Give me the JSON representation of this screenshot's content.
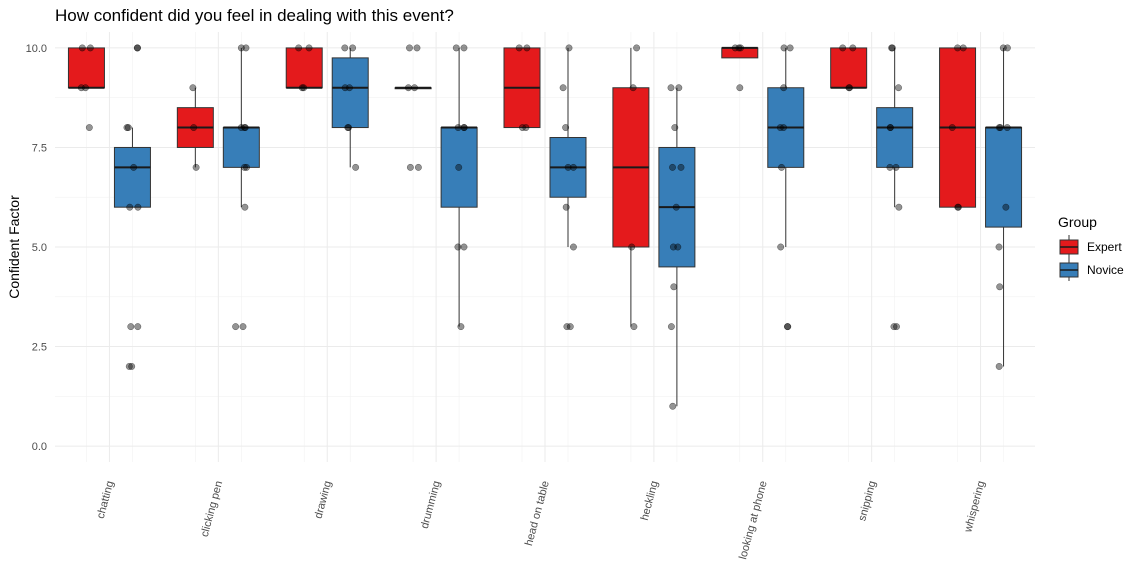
{
  "chart_data": {
    "type": "box",
    "title": "How confident did you feel in dealing with this event?",
    "xlabel": "",
    "ylabel": "Confident Factor",
    "ylim": [
      -0.4,
      10.4
    ],
    "yticks": [
      "0.0",
      "2.5",
      "5.0",
      "7.5",
      "10.0"
    ],
    "ytick_values": [
      0,
      2.5,
      5,
      7.5,
      10
    ],
    "grid": true,
    "legend": {
      "title": "Group",
      "position": "right"
    },
    "categories": [
      "chatting",
      "clicking pen",
      "drawing",
      "drumming",
      "head on table",
      "heckling",
      "looking at phone",
      "snipping",
      "whispering"
    ],
    "series": [
      {
        "name": "Expert",
        "color": "#E41A1C",
        "boxes": [
          {
            "lower": 9,
            "q1": 9,
            "median": 9,
            "q3": 10,
            "upper": 10,
            "points": [
              8,
              9,
              9,
              10,
              10
            ]
          },
          {
            "lower": 7,
            "q1": 7.5,
            "median": 8,
            "q3": 8.5,
            "upper": 9,
            "points": [
              7,
              8,
              9
            ]
          },
          {
            "lower": 9,
            "q1": 9,
            "median": 9,
            "q3": 10,
            "upper": 10,
            "points": [
              9,
              9,
              10,
              10
            ]
          },
          {
            "lower": 9,
            "q1": 9,
            "median": 9,
            "q3": 9,
            "upper": 9,
            "points": [
              7,
              7,
              9,
              9,
              10,
              10
            ]
          },
          {
            "lower": 8,
            "q1": 8,
            "median": 9,
            "q3": 10,
            "upper": 10,
            "points": [
              8,
              8,
              10,
              10
            ]
          },
          {
            "lower": 3,
            "q1": 5,
            "median": 7,
            "q3": 9,
            "upper": 10,
            "points": [
              3,
              5,
              9,
              10
            ]
          },
          {
            "lower": 9.75,
            "q1": 9.75,
            "median": 10,
            "q3": 10,
            "upper": 10,
            "points": [
              9,
              10,
              10,
              10
            ]
          },
          {
            "lower": 9,
            "q1": 9,
            "median": 9,
            "q3": 10,
            "upper": 10,
            "points": [
              9,
              9,
              10,
              10
            ]
          },
          {
            "lower": 6,
            "q1": 6,
            "median": 8,
            "q3": 10,
            "upper": 10,
            "points": [
              6,
              6,
              8,
              10,
              10
            ]
          }
        ]
      },
      {
        "name": "Novice",
        "color": "#377EB8",
        "boxes": [
          {
            "lower": 6,
            "q1": 6,
            "median": 7,
            "q3": 7.5,
            "upper": 8,
            "points": [
              2,
              2,
              3,
              3,
              6,
              6,
              7,
              8,
              8,
              10,
              10
            ]
          },
          {
            "lower": 6,
            "q1": 7,
            "median": 8,
            "q3": 8,
            "upper": 10,
            "points": [
              3,
              3,
              6,
              7,
              7,
              8,
              8,
              8,
              10,
              10
            ]
          },
          {
            "lower": 7,
            "q1": 8,
            "median": 9,
            "q3": 9.75,
            "upper": 10,
            "points": [
              7,
              8,
              8,
              9,
              9,
              10,
              10
            ]
          },
          {
            "lower": 3,
            "q1": 6,
            "median": 8,
            "q3": 8,
            "upper": 10,
            "points": [
              3,
              5,
              5,
              7,
              8,
              8,
              8,
              10,
              10
            ]
          },
          {
            "lower": 5,
            "q1": 6.25,
            "median": 7,
            "q3": 7.75,
            "upper": 10,
            "points": [
              3,
              3,
              5,
              6,
              7,
              7,
              8,
              9,
              10
            ]
          },
          {
            "lower": 1,
            "q1": 4.5,
            "median": 6,
            "q3": 7.5,
            "upper": 9,
            "points": [
              1,
              3,
              4,
              5,
              5,
              6,
              7,
              7,
              8,
              9,
              9
            ]
          },
          {
            "lower": 5,
            "q1": 7,
            "median": 8,
            "q3": 9,
            "upper": 10,
            "points": [
              3,
              3,
              5,
              7,
              8,
              8,
              9,
              10,
              10
            ]
          },
          {
            "lower": 6,
            "q1": 7,
            "median": 8,
            "q3": 8.5,
            "upper": 10,
            "points": [
              3,
              3,
              6,
              7,
              7,
              8,
              8,
              9,
              10,
              10
            ]
          },
          {
            "lower": 2,
            "q1": 5.5,
            "median": 8,
            "q3": 8,
            "upper": 10,
            "points": [
              2,
              4,
              5,
              6,
              8,
              8,
              8,
              10,
              10
            ]
          }
        ]
      }
    ]
  }
}
